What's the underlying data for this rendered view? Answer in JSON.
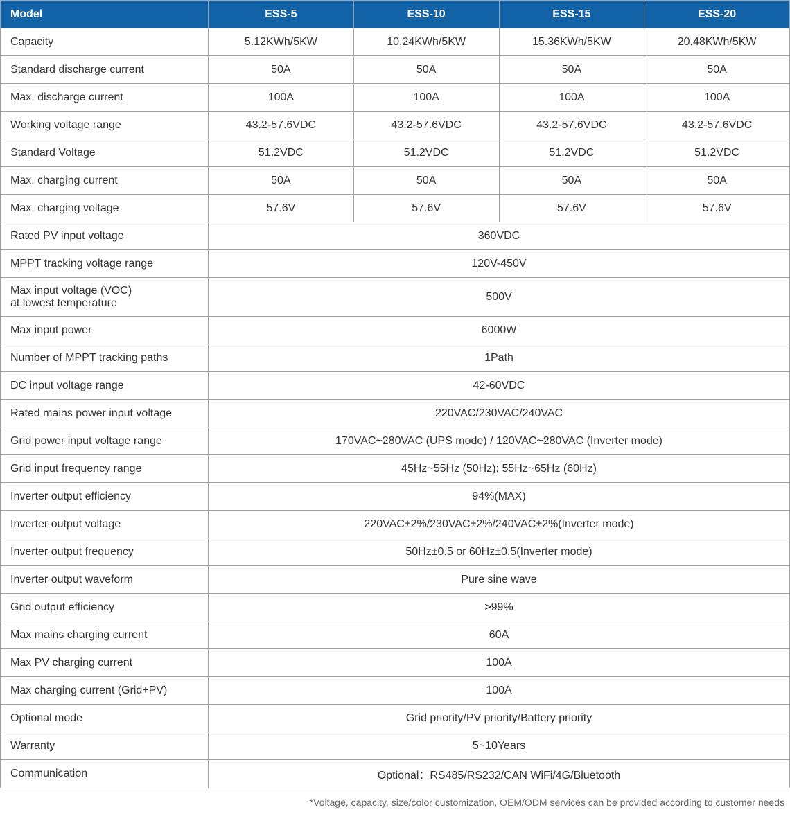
{
  "table": {
    "header_bg": "#1262a8",
    "header_fg": "#ffffff",
    "border_color": "#a0a0a0",
    "cell_bg": "#ffffff",
    "cell_fg": "#333333",
    "font_size": 16,
    "model_label": "Model",
    "label_col_width": 300,
    "columns": [
      "ESS-5",
      "ESS-10",
      "ESS-15",
      "ESS-20"
    ],
    "rows": [
      {
        "label": "Capacity",
        "values": [
          "5.12KWh/5KW",
          "10.24KWh/5KW",
          "15.36KWh/5KW",
          "20.48KWh/5KW"
        ]
      },
      {
        "label": "Standard discharge current",
        "values": [
          "50A",
          "50A",
          "50A",
          "50A"
        ]
      },
      {
        "label": "Max. discharge current",
        "values": [
          "100A",
          "100A",
          "100A",
          "100A"
        ]
      },
      {
        "label": "Working voltage range",
        "values": [
          "43.2-57.6VDC",
          "43.2-57.6VDC",
          "43.2-57.6VDC",
          "43.2-57.6VDC"
        ]
      },
      {
        "label": "Standard Voltage",
        "values": [
          "51.2VDC",
          "51.2VDC",
          "51.2VDC",
          "51.2VDC"
        ]
      },
      {
        "label": "Max. charging current",
        "values": [
          "50A",
          "50A",
          "50A",
          "50A"
        ]
      },
      {
        "label": "Max. charging voltage",
        "values": [
          "57.6V",
          "57.6V",
          "57.6V",
          "57.6V"
        ]
      },
      {
        "label": "Rated PV input voltage",
        "merged_value": "360VDC"
      },
      {
        "label": "MPPT tracking voltage range",
        "merged_value": "120V-450V"
      },
      {
        "label": "Max input voltage (VOC)\nat lowest temperature",
        "merged_value": "500V",
        "tall": true
      },
      {
        "label": "Max input power",
        "merged_value": "6000W"
      },
      {
        "label": "Number of MPPT tracking paths",
        "merged_value": "1Path"
      },
      {
        "label": "DC input voltage range",
        "merged_value": "42-60VDC"
      },
      {
        "label": "Rated mains power input voltage",
        "merged_value": "220VAC/230VAC/240VAC"
      },
      {
        "label": "Grid power input voltage range",
        "merged_value": "170VAC~280VAC (UPS mode) / 120VAC~280VAC (Inverter mode)"
      },
      {
        "label": "Grid input frequency range",
        "merged_value": "45Hz~55Hz (50Hz); 55Hz~65Hz (60Hz)"
      },
      {
        "label": "Inverter output efficiency",
        "merged_value": "94%(MAX)"
      },
      {
        "label": "Inverter output voltage",
        "merged_value": "220VAC±2%/230VAC±2%/240VAC±2%(Inverter mode)"
      },
      {
        "label": "Inverter output frequency",
        "merged_value": "50Hz±0.5 or 60Hz±0.5(Inverter mode)"
      },
      {
        "label": "Inverter output waveform",
        "merged_value": "Pure sine wave"
      },
      {
        "label": "Grid output efficiency",
        "merged_value": ">99%"
      },
      {
        "label": "Max mains charging current",
        "merged_value": "60A"
      },
      {
        "label": "Max PV charging current",
        "merged_value": "100A"
      },
      {
        "label": "Max charging current (Grid+PV)",
        "merged_value": "100A"
      },
      {
        "label": "Optional mode",
        "merged_value": "Grid priority/PV priority/Battery priority"
      },
      {
        "label": "Warranty",
        "merged_value": "5~10Years"
      },
      {
        "label": "Communication",
        "merged_value": "Optional：RS485/RS232/CAN   WiFi/4G/Bluetooth"
      }
    ]
  },
  "footnote": "*Voltage, capacity, size/color customization, OEM/ODM services can be provided according to customer needs"
}
